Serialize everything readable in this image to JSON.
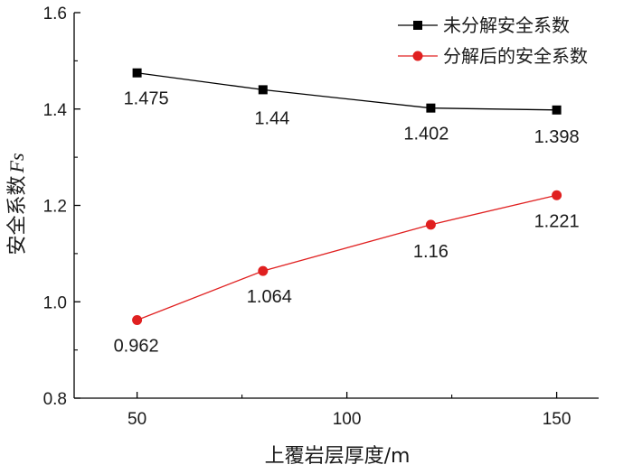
{
  "chart_data": {
    "type": "line",
    "xlabel": "上覆岩层厚度/m",
    "ylabel": "安全系数",
    "ylabel_symbol": "Fs",
    "xlim": [
      35,
      160
    ],
    "ylim": [
      0.8,
      1.6
    ],
    "xticks": [
      50,
      100,
      150
    ],
    "yticks": [
      0.8,
      1.0,
      1.2,
      1.4,
      1.6
    ],
    "xtick_labels": [
      "50",
      "100",
      "150"
    ],
    "ytick_labels": [
      "0.8",
      "1.0",
      "1.2",
      "1.4",
      "1.6"
    ],
    "grid": false,
    "legend_position": "top-right",
    "series": [
      {
        "name": "未分解安全系数",
        "color": "#000000",
        "marker": "square",
        "x": [
          50,
          80,
          120,
          150
        ],
        "y": [
          1.475,
          1.44,
          1.402,
          1.398
        ],
        "labels": [
          "1.475",
          "1.44",
          "1.402",
          "1.398"
        ]
      },
      {
        "name": "分解后的安全系数",
        "color": "#e02020",
        "marker": "circle",
        "x": [
          50,
          80,
          120,
          150
        ],
        "y": [
          0.962,
          1.064,
          1.16,
          1.221
        ],
        "labels": [
          "0.962",
          "1.064",
          "1.16",
          "1.221"
        ]
      }
    ]
  }
}
